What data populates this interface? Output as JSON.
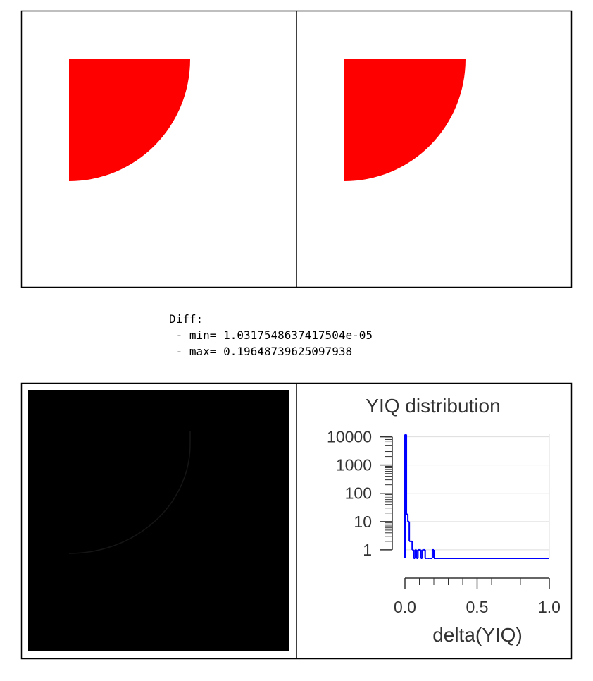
{
  "diff": {
    "heading": "Diff:",
    "min_line": " - min= 1.0317548637417504e-05",
    "max_line": " - max= 0.19648739625097938"
  },
  "chart_data": {
    "type": "histogram",
    "title": "YIQ distribution",
    "x_label": "delta(YIQ)",
    "bins": [
      0,
      0.01,
      0.02,
      0.03,
      0.04,
      0.05,
      0.06,
      0.07,
      0.08,
      0.09,
      0.1,
      0.11,
      0.12,
      0.13,
      0.14,
      0.15,
      0.16,
      0.17,
      0.18,
      0.19,
      0.2,
      1.0
    ],
    "values": [
      12000,
      18,
      10,
      2,
      2,
      1,
      0,
      1,
      0,
      1,
      1,
      0,
      1,
      1,
      0,
      0,
      0,
      0,
      0,
      1,
      0
    ],
    "color": "#0000ff",
    "xlim": [
      0,
      1
    ],
    "xticks": [
      {
        "value": 0,
        "label": "0.0"
      },
      {
        "value": 0.5,
        "label": "0.5"
      },
      {
        "value": 1,
        "label": "1.0"
      }
    ],
    "ylim": [
      0.5,
      13000
    ],
    "yticks": [
      1,
      10,
      100,
      1000,
      10000
    ],
    "y_scale": "log",
    "grid": true
  }
}
